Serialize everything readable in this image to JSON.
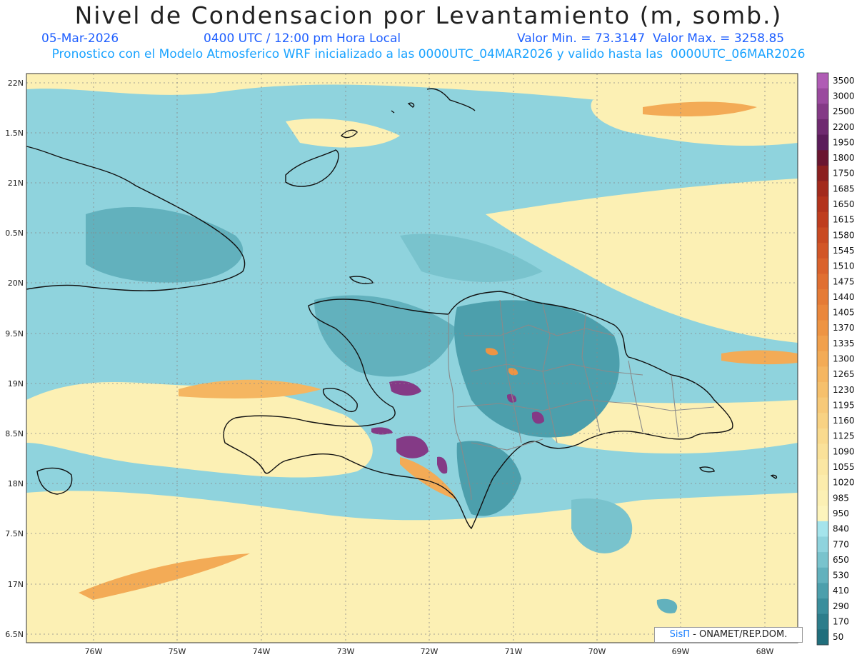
{
  "header": {
    "title": "Nivel de Condensacion por Levantamiento (m, somb.)",
    "date": "05-Mar-2026",
    "time": "0400 UTC / 12:00 pm Hora Local",
    "min_max": "Valor Min. = 73.3147  Valor Max. = 3258.85",
    "forecast": "Pronostico con el Modelo Atmosferico WRF inicializado a las 0000UTC_04MAR2026 y valido hasta las  0000UTC_06MAR2026"
  },
  "axes": {
    "lat_labels": [
      "22N",
      "1.5N",
      "21N",
      "0.5N",
      "20N",
      "9.5N",
      "19N",
      "8.5N",
      "18N",
      "7.5N",
      "17N",
      "6.5N"
    ],
    "lon_labels": [
      "76W",
      "75W",
      "74W",
      "73W",
      "72W",
      "71W",
      "70W",
      "69W",
      "68W"
    ]
  },
  "colorbar": {
    "levels": [
      "3500",
      "3000",
      "2500",
      "2200",
      "1950",
      "1800",
      "1750",
      "1685",
      "1650",
      "1615",
      "1580",
      "1545",
      "1510",
      "1475",
      "1440",
      "1405",
      "1370",
      "1335",
      "1300",
      "1265",
      "1230",
      "1195",
      "1160",
      "1125",
      "1090",
      "1055",
      "1020",
      "985",
      "950",
      "840",
      "770",
      "650",
      "530",
      "410",
      "290",
      "170",
      "50"
    ],
    "colors": [
      "#b05cb5",
      "#9a4a9e",
      "#843a86",
      "#6f2a70",
      "#5b1c5a",
      "#6a1530",
      "#8b1f1f",
      "#a32a1c",
      "#b3331c",
      "#bf3d1e",
      "#c94a22",
      "#d25627",
      "#da622c",
      "#e06f31",
      "#e57b36",
      "#ea873c",
      "#ee9443",
      "#f1a04c",
      "#f3ab56",
      "#f5b661",
      "#f6c06c",
      "#f7c978",
      "#f8d283",
      "#f9da8e",
      "#fae199",
      "#fbe7a3",
      "#fcecac",
      "#fcf0b4",
      "#fdf4bc",
      "#a5e4ec",
      "#8fd3dd",
      "#79c3cd",
      "#62b1bd",
      "#4c9fac",
      "#3a8e9c",
      "#2c7d8b",
      "#206e7c"
    ]
  },
  "legend_colors": {
    "ocean_base": "#8fd3dd",
    "land_outline": "#111111",
    "border_gray": "#8a8a8a",
    "grid": "#888888"
  },
  "credit": {
    "brand": "SisΠ",
    "text": "- ONAMET/REP.DOM."
  }
}
